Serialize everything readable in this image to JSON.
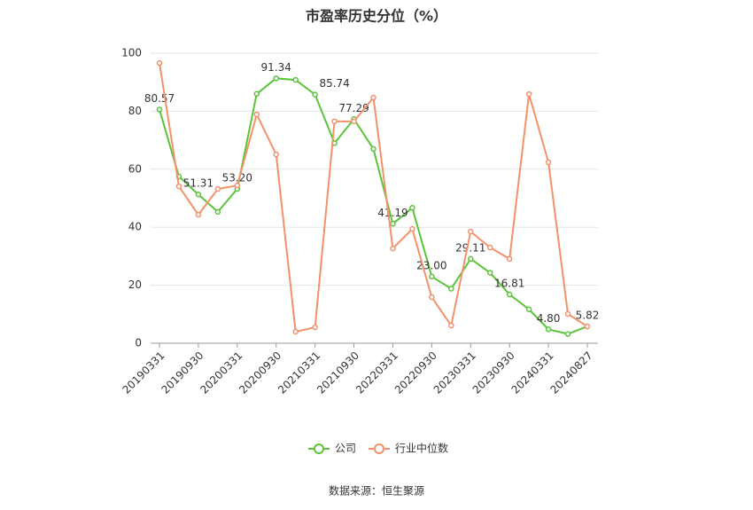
{
  "chart_data": {
    "type": "line",
    "title": "市盈率历史分位（%）",
    "source": "数据来源：恒生聚源",
    "categories": [
      "20190331",
      null,
      "20190930",
      null,
      "20200331",
      null,
      "20200930",
      null,
      "20210331",
      null,
      "20210930",
      null,
      "20220331",
      null,
      "20220930",
      null,
      "20230331",
      null,
      "20230930",
      null,
      "20240331",
      null,
      "20240827"
    ],
    "ylim": [
      0,
      100
    ],
    "yticks": [
      0,
      20,
      40,
      60,
      80,
      100
    ],
    "grid": true,
    "series": [
      {
        "name": "公司",
        "color": "#5ac43a",
        "values": [
          80.57,
          57.5,
          51.31,
          45.3,
          53.2,
          86.0,
          91.34,
          90.8,
          85.74,
          69.0,
          77.29,
          67.0,
          41.19,
          46.7,
          23.0,
          18.8,
          29.11,
          24.3,
          16.81,
          11.7,
          4.8,
          3.2,
          5.82
        ],
        "value_labels": [
          "80.57",
          null,
          "51.31",
          null,
          "53.20",
          null,
          "91.34",
          null,
          "85.74",
          null,
          "77.29",
          null,
          "41.19",
          null,
          "23.00",
          null,
          "29.11",
          null,
          "16.81",
          null,
          "4.80",
          null,
          "5.82"
        ]
      },
      {
        "name": "行业中位数",
        "color": "#f4916a",
        "values": [
          96.6,
          54.1,
          44.3,
          53.2,
          54.4,
          78.9,
          65.1,
          4.0,
          5.5,
          76.5,
          76.5,
          84.7,
          32.7,
          39.4,
          15.9,
          6.1,
          38.5,
          33.0,
          29.1,
          85.9,
          62.4,
          10.1,
          5.8
        ]
      }
    ]
  }
}
